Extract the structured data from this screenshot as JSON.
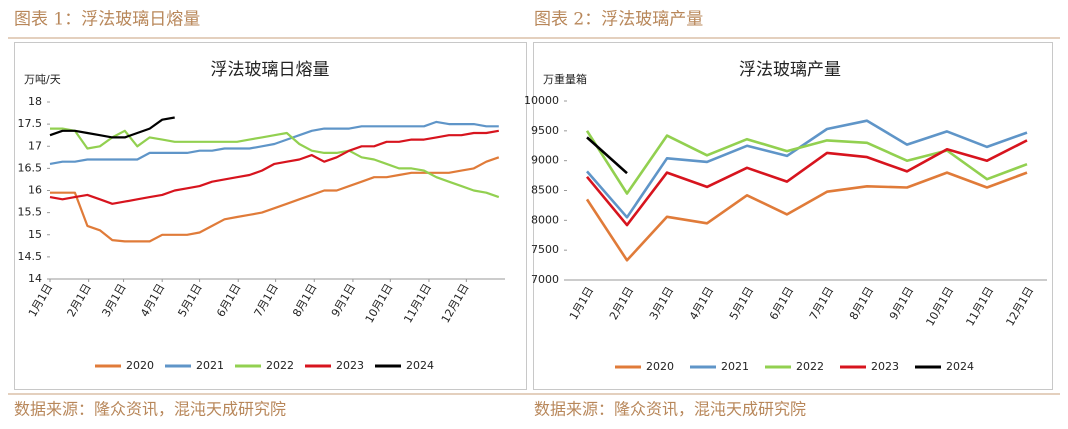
{
  "chart_data": [
    {
      "type": "line",
      "heading": "图表 1：浮法玻璃日熔量",
      "title": "浮法玻璃日熔量",
      "ylabel": "万吨/天",
      "source": "数据来源：隆众资讯，混沌天成研究院",
      "x": [
        1,
        11,
        21,
        31,
        41,
        51,
        61,
        71,
        81,
        91,
        101,
        111,
        121,
        131,
        141,
        151,
        161,
        171,
        181,
        191,
        201,
        211,
        221,
        231,
        241,
        251,
        261,
        271,
        281,
        291,
        301,
        311,
        321,
        331,
        341,
        351,
        361
      ],
      "xlim": [
        1,
        366
      ],
      "xticks": [
        {
          "value": 1,
          "label": "1月1日"
        },
        {
          "value": 32,
          "label": "2月1日"
        },
        {
          "value": 60,
          "label": "3月1日"
        },
        {
          "value": 91,
          "label": "4月1日"
        },
        {
          "value": 121,
          "label": "5月1日"
        },
        {
          "value": 152,
          "label": "6月1日"
        },
        {
          "value": 182,
          "label": "7月1日"
        },
        {
          "value": 213,
          "label": "8月1日"
        },
        {
          "value": 244,
          "label": "9月1日"
        },
        {
          "value": 274,
          "label": "10月1日"
        },
        {
          "value": 305,
          "label": "11月1日"
        },
        {
          "value": 335,
          "label": "12月1日"
        }
      ],
      "ylim": [
        14,
        18
      ],
      "yticks": [
        14,
        14.5,
        15,
        15.5,
        16,
        16.5,
        17,
        17.5,
        18
      ],
      "series": [
        {
          "name": "2020",
          "color": "#e07b39",
          "values": [
            15.95,
            15.95,
            15.95,
            15.2,
            15.1,
            14.88,
            14.85,
            14.85,
            14.85,
            15.0,
            15.0,
            15.0,
            15.05,
            15.2,
            15.35,
            15.4,
            15.45,
            15.5,
            15.6,
            15.7,
            15.8,
            15.9,
            16.0,
            16.0,
            16.1,
            16.2,
            16.3,
            16.3,
            16.35,
            16.4,
            16.4,
            16.4,
            16.4,
            16.45,
            16.5,
            16.65,
            16.75
          ]
        },
        {
          "name": "2021",
          "color": "#5f95c8",
          "values": [
            16.6,
            16.65,
            16.65,
            16.7,
            16.7,
            16.7,
            16.7,
            16.7,
            16.85,
            16.85,
            16.85,
            16.85,
            16.9,
            16.9,
            16.95,
            16.95,
            16.95,
            17.0,
            17.05,
            17.15,
            17.25,
            17.35,
            17.4,
            17.4,
            17.4,
            17.45,
            17.45,
            17.45,
            17.45,
            17.45,
            17.45,
            17.55,
            17.5,
            17.5,
            17.5,
            17.45,
            17.45
          ]
        },
        {
          "name": "2022",
          "color": "#92d050",
          "values": [
            17.4,
            17.4,
            17.35,
            16.95,
            17.0,
            17.2,
            17.35,
            17.0,
            17.2,
            17.15,
            17.1,
            17.1,
            17.1,
            17.1,
            17.1,
            17.1,
            17.15,
            17.2,
            17.25,
            17.3,
            17.05,
            16.9,
            16.85,
            16.85,
            16.9,
            16.75,
            16.7,
            16.6,
            16.5,
            16.5,
            16.45,
            16.3,
            16.2,
            16.1,
            16.0,
            15.95,
            15.85
          ]
        },
        {
          "name": "2023",
          "color": "#d7141e",
          "values": [
            15.85,
            15.8,
            15.85,
            15.9,
            15.8,
            15.7,
            15.75,
            15.8,
            15.85,
            15.9,
            16.0,
            16.05,
            16.1,
            16.2,
            16.25,
            16.3,
            16.35,
            16.45,
            16.6,
            16.65,
            16.7,
            16.8,
            16.65,
            16.75,
            16.9,
            17.0,
            17.0,
            17.1,
            17.1,
            17.15,
            17.15,
            17.2,
            17.25,
            17.25,
            17.3,
            17.3,
            17.35
          ]
        },
        {
          "name": "2024",
          "color": "#000000",
          "values": [
            17.25,
            17.35,
            17.35,
            17.3,
            17.25,
            17.2,
            17.2,
            17.3,
            17.4,
            17.6,
            17.65,
            null,
            null,
            null,
            null,
            null,
            null,
            null,
            null,
            null,
            null,
            null,
            null,
            null,
            null,
            null,
            null,
            null,
            null,
            null,
            null,
            null,
            null,
            null,
            null,
            null,
            null
          ]
        }
      ]
    },
    {
      "type": "line",
      "heading": "图表 2：浮法玻璃产量",
      "title": "浮法玻璃产量",
      "ylabel": "万重量箱",
      "source": "数据来源：隆众资讯，混沌天成研究院",
      "categories": [
        "1月1日",
        "2月1日",
        "3月1日",
        "4月1日",
        "5月1日",
        "6月1日",
        "7月1日",
        "8月1日",
        "9月1日",
        "10月1日",
        "11月1日",
        "12月1日"
      ],
      "ylim": [
        7000,
        10000
      ],
      "yticks": [
        7000,
        7500,
        8000,
        8500,
        9000,
        9500,
        10000
      ],
      "series": [
        {
          "name": "2020",
          "color": "#e07b39",
          "values": [
            8350,
            7330,
            8060,
            7950,
            8420,
            8100,
            8480,
            8570,
            8550,
            8800,
            8550,
            8800
          ]
        },
        {
          "name": "2021",
          "color": "#5f95c8",
          "values": [
            8820,
            8050,
            9040,
            8980,
            9250,
            9080,
            9530,
            9670,
            9270,
            9490,
            9230,
            9470
          ]
        },
        {
          "name": "2022",
          "color": "#92d050",
          "values": [
            9500,
            8450,
            9420,
            9090,
            9360,
            9160,
            9340,
            9300,
            9000,
            9170,
            8690,
            8940
          ]
        },
        {
          "name": "2023",
          "color": "#d7141e",
          "values": [
            8730,
            7920,
            8800,
            8560,
            8880,
            8650,
            9130,
            9060,
            8820,
            9190,
            9000,
            9340
          ]
        },
        {
          "name": "2024",
          "color": "#000000",
          "values": [
            9390,
            8790,
            null,
            null,
            null,
            null,
            null,
            null,
            null,
            null,
            null,
            null
          ]
        }
      ]
    }
  ]
}
